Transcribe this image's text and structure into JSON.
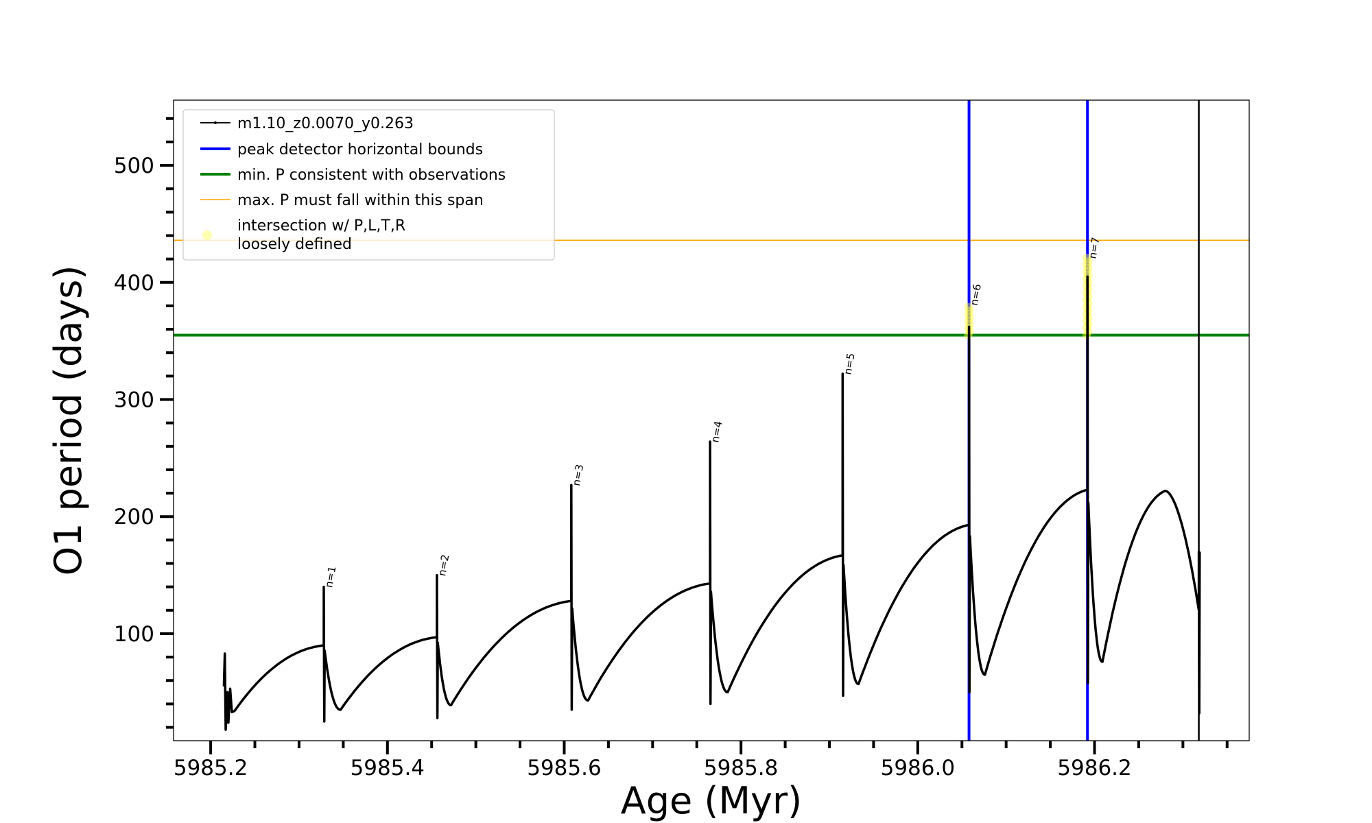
{
  "chart_data": {
    "type": "line",
    "xlabel": "Age (Myr)",
    "ylabel": "O1 period (days)",
    "xlim": [
      5985.158,
      5986.375
    ],
    "ylim": [
      8.6,
      555.7
    ],
    "xticks": [
      5985.2,
      5985.4,
      5985.6,
      5985.8,
      5986.0,
      5986.2
    ],
    "xtick_labels": [
      "5985.2",
      "5985.4",
      "5985.6",
      "5985.8",
      "5986.0",
      "5986.2"
    ],
    "x_minor_step": 0.05,
    "yticks": [
      100,
      200,
      300,
      400,
      500
    ],
    "ytick_labels": [
      "100",
      "200",
      "300",
      "400",
      "500"
    ],
    "y_minor_step": 20,
    "grid": false,
    "legend_position": "top-left",
    "legend": [
      {
        "label": "m1.10_z0.0070_y0.263",
        "color": "#000000",
        "style": "line-marker"
      },
      {
        "label": "peak detector horizontal bounds",
        "color": "#0000ff",
        "style": "thick-line"
      },
      {
        "label": "min. P consistent with observations",
        "color": "#008000",
        "style": "thick-line"
      },
      {
        "label": "max. P must fall within this span",
        "color": "#ffa500",
        "style": "thin-line"
      },
      {
        "label": "intersection w/ P,L,T,R\nloosely defined",
        "label_lines": [
          "intersection w/ P,L,T,R",
          "loosely defined"
        ],
        "color": "#ffff66",
        "style": "marker"
      }
    ],
    "horizontal_lines": [
      {
        "name": "min-period",
        "y": 355,
        "color": "#008000"
      },
      {
        "name": "max-period",
        "y": 436,
        "color": "#ffa500"
      }
    ],
    "vertical_lines": [
      {
        "name": "peak-bound-1",
        "x": 5986.058,
        "color": "#0000ff"
      },
      {
        "name": "peak-bound-2",
        "x": 5986.192,
        "color": "#0000ff"
      },
      {
        "name": "track-end",
        "x": 5986.318,
        "color": "#000000"
      }
    ],
    "series": {
      "name": "m1.10_z0.0070_y0.263",
      "color": "#000000",
      "initial": [
        [
          5985.215,
          55
        ],
        [
          5985.216,
          83
        ],
        [
          5985.217,
          18
        ],
        [
          5985.219,
          50
        ],
        [
          5985.22,
          24
        ],
        [
          5985.222,
          53
        ],
        [
          5985.224,
          33
        ],
        [
          5985.227,
          34
        ]
      ],
      "cycles": [
        {
          "label": "n=1",
          "peak_age": 5985.328,
          "pre": 90,
          "spike": 140,
          "drop": 25,
          "min_age": 5985.347,
          "min": 35
        },
        {
          "label": "n=2",
          "peak_age": 5985.456,
          "pre": 97,
          "spike": 150,
          "drop": 28,
          "min_age": 5985.472,
          "min": 39
        },
        {
          "label": "n=3",
          "peak_age": 5985.608,
          "pre": 128,
          "spike": 227,
          "drop": 35,
          "min_age": 5985.627,
          "min": 43
        },
        {
          "label": "n=4",
          "peak_age": 5985.765,
          "pre": 143,
          "spike": 264,
          "drop": 40,
          "min_age": 5985.785,
          "min": 50
        },
        {
          "label": "n=5",
          "peak_age": 5985.915,
          "pre": 167,
          "spike": 322,
          "drop": 47,
          "min_age": 5985.933,
          "min": 57
        },
        {
          "label": "n=6",
          "peak_age": 5986.058,
          "pre": 193,
          "spike": 362,
          "drop": 50,
          "min_age": 5986.076,
          "min": 65
        },
        {
          "label": "n=7",
          "peak_age": 5986.192,
          "pre": 223,
          "spike": 405,
          "drop": 58,
          "min_age": 5986.209,
          "min": 76
        }
      ],
      "final": {
        "max_age": 5986.28,
        "max": 222,
        "end_age": 5986.318,
        "end": 120,
        "spike": 170,
        "drop": 32
      }
    },
    "intersections": [
      {
        "label": "n=6",
        "x": 5986.058,
        "y_from": 355,
        "y_to": 381
      },
      {
        "label": "n=7",
        "x": 5986.192,
        "y_from": 355,
        "y_to": 421
      }
    ]
  }
}
